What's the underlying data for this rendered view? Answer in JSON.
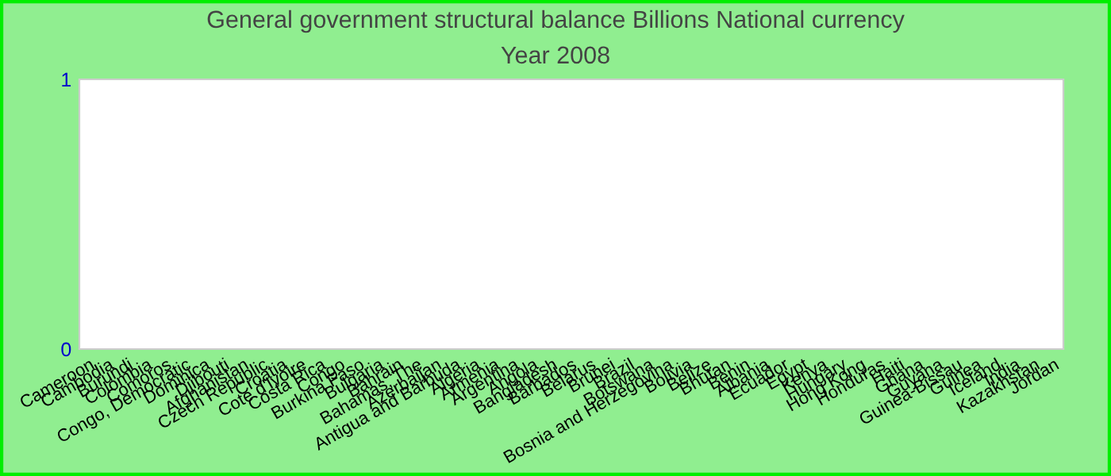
{
  "chart_data": {
    "type": "bar",
    "title": "General government structural balance Billions National currency",
    "subtitle": "Year 2008",
    "categories": [
      "Cameroon",
      "Cambodia",
      "Burundi",
      "Colombia",
      "Comoros",
      "Congo, Democratic",
      "Dominica",
      "Djibouti",
      "Afghanistan",
      "Czech Republic",
      "Croatia",
      "Cote d'Ivoire",
      "Costa Rica",
      "Congo",
      "Burkina Faso",
      "Bulgaria",
      "Bahrain",
      "Bahamas, The",
      "Azerbaijan",
      "Antigua and Barbuda",
      "Algeria",
      "Armenia",
      "Argentina",
      "Angola",
      "Bangladesh",
      "Barbados",
      "Belarus",
      "Brunei",
      "Brazil",
      "Botswana",
      "Bosnia and Herzegovina",
      "Bolivia",
      "Belize",
      "Bhutan",
      "Benin",
      "Albania",
      "Ecuador",
      "Egypt",
      "Kenya",
      "Hungary",
      "Hong Kong",
      "Honduras",
      "Haiti",
      "Ghana",
      "Guyana",
      "Guinea-Bissau",
      "Guinea",
      "Iceland",
      "India",
      "Kazakhstan",
      "Jordan"
    ],
    "values": [
      null,
      null,
      null,
      null,
      null,
      null,
      null,
      null,
      null,
      null,
      null,
      null,
      null,
      null,
      null,
      null,
      null,
      null,
      null,
      null,
      null,
      null,
      null,
      null,
      null,
      null,
      null,
      null,
      null,
      null,
      null,
      null,
      null,
      null,
      null,
      null,
      null,
      null,
      null,
      null,
      null,
      null,
      null,
      null,
      null,
      null,
      null,
      null,
      null,
      null,
      null
    ],
    "ylim": [
      0,
      1
    ],
    "yticks": [
      0,
      1
    ],
    "grid": false,
    "legend": false
  }
}
